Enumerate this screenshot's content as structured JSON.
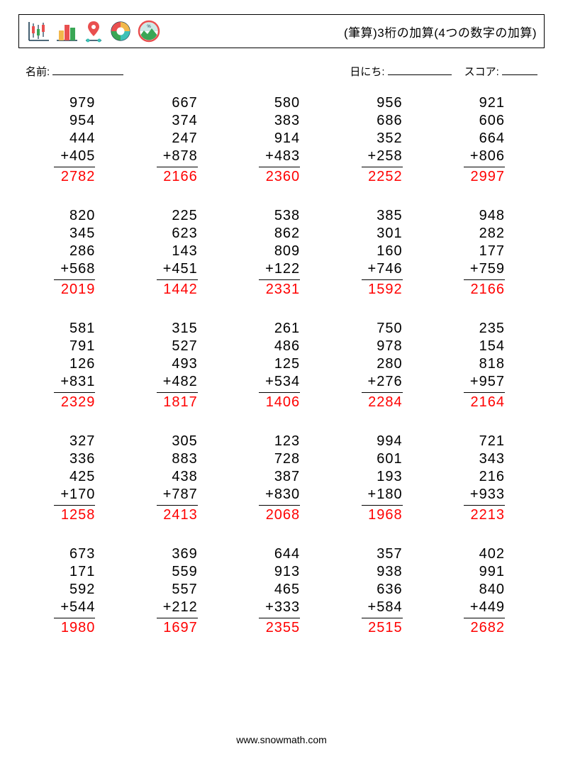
{
  "header": {
    "title": "(筆算)3桁の加算(4つの数字の加算)"
  },
  "info": {
    "name_label": "名前:",
    "date_label": "日にち:",
    "score_label": "スコア:"
  },
  "style": {
    "answer_color": "#ff0000",
    "rule_color": "#000000",
    "text_color": "#000000",
    "background": "#ffffff",
    "font_size_problem": 20,
    "columns": 5,
    "rows": 5
  },
  "icons": {
    "candlestick": {
      "colors": [
        "#e94f4f",
        "#3aa655"
      ],
      "axis": "#15384f"
    },
    "bar": {
      "colors": [
        "#f2b84b",
        "#e94f4f",
        "#3aa655"
      ],
      "axis": "#15384f"
    },
    "pin": {
      "pin": "#e94f4f",
      "dot": "#3cc1b6",
      "line": "#15384f"
    },
    "donut": {
      "segments": [
        "#f2b84b",
        "#e94f4f",
        "#3cc1b6",
        "#3aa655"
      ],
      "ring": "#15384f"
    },
    "chart": {
      "ring": "#e94f4f",
      "mountain": "#3aa655",
      "sky": "#cde9e6",
      "label": "#15384f"
    }
  },
  "problems": [
    {
      "addends": [
        979,
        954,
        444,
        405
      ],
      "answer": 2782
    },
    {
      "addends": [
        667,
        374,
        247,
        878
      ],
      "answer": 2166
    },
    {
      "addends": [
        580,
        383,
        914,
        483
      ],
      "answer": 2360
    },
    {
      "addends": [
        956,
        686,
        352,
        258
      ],
      "answer": 2252
    },
    {
      "addends": [
        921,
        606,
        664,
        806
      ],
      "answer": 2997
    },
    {
      "addends": [
        820,
        345,
        286,
        568
      ],
      "answer": 2019
    },
    {
      "addends": [
        225,
        623,
        143,
        451
      ],
      "answer": 1442
    },
    {
      "addends": [
        538,
        862,
        809,
        122
      ],
      "answer": 2331
    },
    {
      "addends": [
        385,
        301,
        160,
        746
      ],
      "answer": 1592
    },
    {
      "addends": [
        948,
        282,
        177,
        759
      ],
      "answer": 2166
    },
    {
      "addends": [
        581,
        791,
        126,
        831
      ],
      "answer": 2329
    },
    {
      "addends": [
        315,
        527,
        493,
        482
      ],
      "answer": 1817
    },
    {
      "addends": [
        261,
        486,
        125,
        534
      ],
      "answer": 1406
    },
    {
      "addends": [
        750,
        978,
        280,
        276
      ],
      "answer": 2284
    },
    {
      "addends": [
        235,
        154,
        818,
        957
      ],
      "answer": 2164
    },
    {
      "addends": [
        327,
        336,
        425,
        170
      ],
      "answer": 1258
    },
    {
      "addends": [
        305,
        883,
        438,
        787
      ],
      "answer": 2413
    },
    {
      "addends": [
        123,
        728,
        387,
        830
      ],
      "answer": 2068
    },
    {
      "addends": [
        994,
        601,
        193,
        180
      ],
      "answer": 1968
    },
    {
      "addends": [
        721,
        343,
        216,
        933
      ],
      "answer": 2213
    },
    {
      "addends": [
        673,
        171,
        592,
        544
      ],
      "answer": 1980
    },
    {
      "addends": [
        369,
        559,
        557,
        212
      ],
      "answer": 1697
    },
    {
      "addends": [
        644,
        913,
        465,
        333
      ],
      "answer": 2355
    },
    {
      "addends": [
        357,
        938,
        636,
        584
      ],
      "answer": 2515
    },
    {
      "addends": [
        402,
        991,
        840,
        449
      ],
      "answer": 2682
    }
  ],
  "footer": {
    "text": "www.snowmath.com"
  }
}
